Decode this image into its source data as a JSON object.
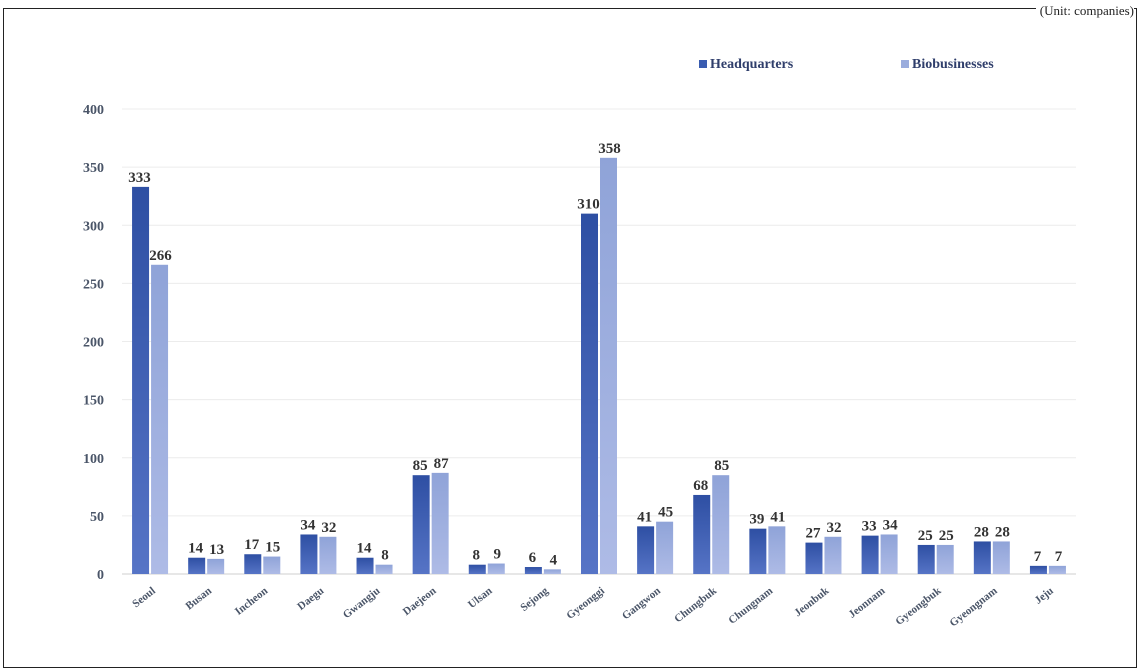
{
  "unit_note": "(Unit: companies)",
  "chart_data": {
    "type": "bar",
    "title": "",
    "xlabel": "",
    "ylabel": "",
    "ylim": [
      0,
      400
    ],
    "yticks": [
      0,
      50,
      100,
      150,
      200,
      250,
      300,
      350,
      400
    ],
    "grid": true,
    "legend_position": "top-right",
    "categories": [
      "Seoul",
      "Busan",
      "Incheon",
      "Daegu",
      "Gwangju",
      "Daejeon",
      "Ulsan",
      "Sejong",
      "Gyeonggi",
      "Gangwon",
      "Chungbuk",
      "Chungnam",
      "Jeonbuk",
      "Jeonnam",
      "Gyeongbuk",
      "Gyeongnam",
      "Jeju"
    ],
    "series": [
      {
        "name": "Headquarters",
        "color": "#3a5cb0",
        "values": [
          333,
          14,
          17,
          34,
          14,
          85,
          8,
          6,
          310,
          41,
          68,
          39,
          27,
          33,
          25,
          28,
          7
        ]
      },
      {
        "name": "Biobusinesses",
        "color": "#9aacdd",
        "values": [
          266,
          13,
          15,
          32,
          8,
          87,
          9,
          4,
          358,
          45,
          85,
          41,
          32,
          34,
          25,
          28,
          7
        ]
      }
    ]
  }
}
